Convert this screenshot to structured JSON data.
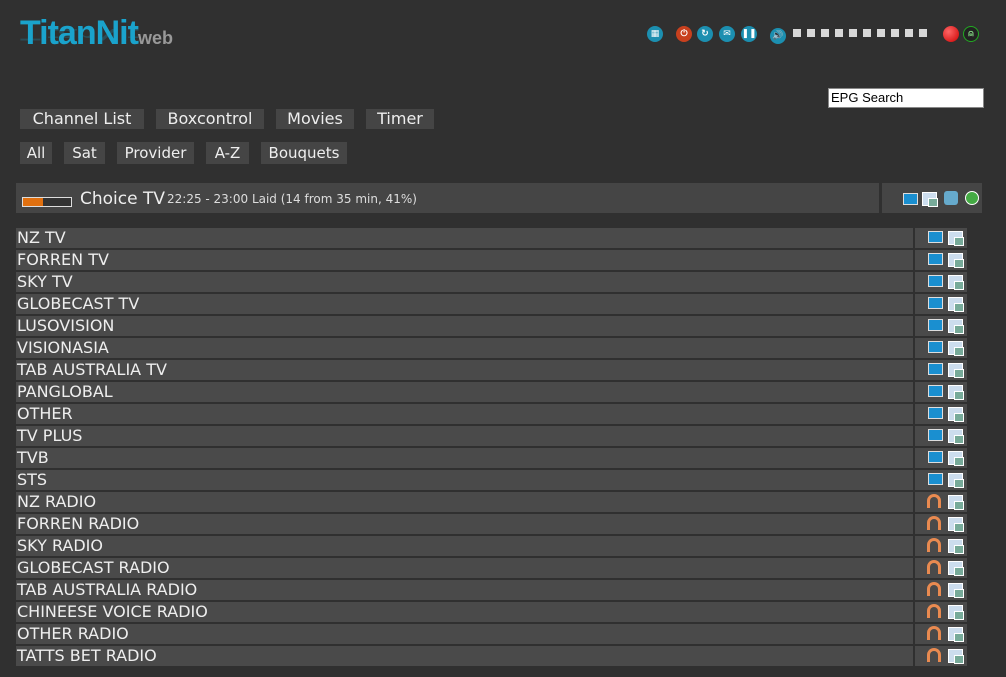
{
  "logo": {
    "main": "TitanNit",
    "sub": "web"
  },
  "toolbar": {
    "icons": [
      "remote-icon",
      "power-icon",
      "restart-icon",
      "message-icon",
      "pause-icon",
      "volume-icon"
    ],
    "volume_level": 0,
    "volume_steps": 10,
    "record": "record-icon",
    "stream": "stream-icon"
  },
  "search": {
    "value": "EPG Search"
  },
  "nav": [
    "Channel List",
    "Boxcontrol",
    "Movies",
    "Timer"
  ],
  "filters": [
    "All",
    "Sat",
    "Provider",
    "A-Z",
    "Bouquets"
  ],
  "current": {
    "channel": "Choice TV",
    "info": "22:25 - 23:00 Laid (14 from 35 min, 41%)",
    "progress": 41
  },
  "bouquets": [
    {
      "name": "NZ TV",
      "type": "tv"
    },
    {
      "name": "FORREN TV",
      "type": "tv"
    },
    {
      "name": "SKY TV",
      "type": "tv"
    },
    {
      "name": "GLOBECAST TV",
      "type": "tv"
    },
    {
      "name": "LUSOVISION",
      "type": "tv"
    },
    {
      "name": "VISIONASIA",
      "type": "tv"
    },
    {
      "name": "TAB AUSTRALIA TV",
      "type": "tv"
    },
    {
      "name": "PANGLOBAL",
      "type": "tv"
    },
    {
      "name": "OTHER",
      "type": "tv"
    },
    {
      "name": "TV PLUS",
      "type": "tv"
    },
    {
      "name": "TVB",
      "type": "tv"
    },
    {
      "name": "STS",
      "type": "tv"
    },
    {
      "name": "NZ RADIO",
      "type": "radio"
    },
    {
      "name": "FORREN RADIO",
      "type": "radio"
    },
    {
      "name": "SKY RADIO",
      "type": "radio"
    },
    {
      "name": "GLOBECAST RADIO",
      "type": "radio"
    },
    {
      "name": "TAB AUSTRALIA RADIO",
      "type": "radio"
    },
    {
      "name": "CHINEESE VOICE RADIO",
      "type": "radio"
    },
    {
      "name": "OTHER RADIO",
      "type": "radio"
    },
    {
      "name": "TATTS BET RADIO",
      "type": "radio"
    }
  ]
}
